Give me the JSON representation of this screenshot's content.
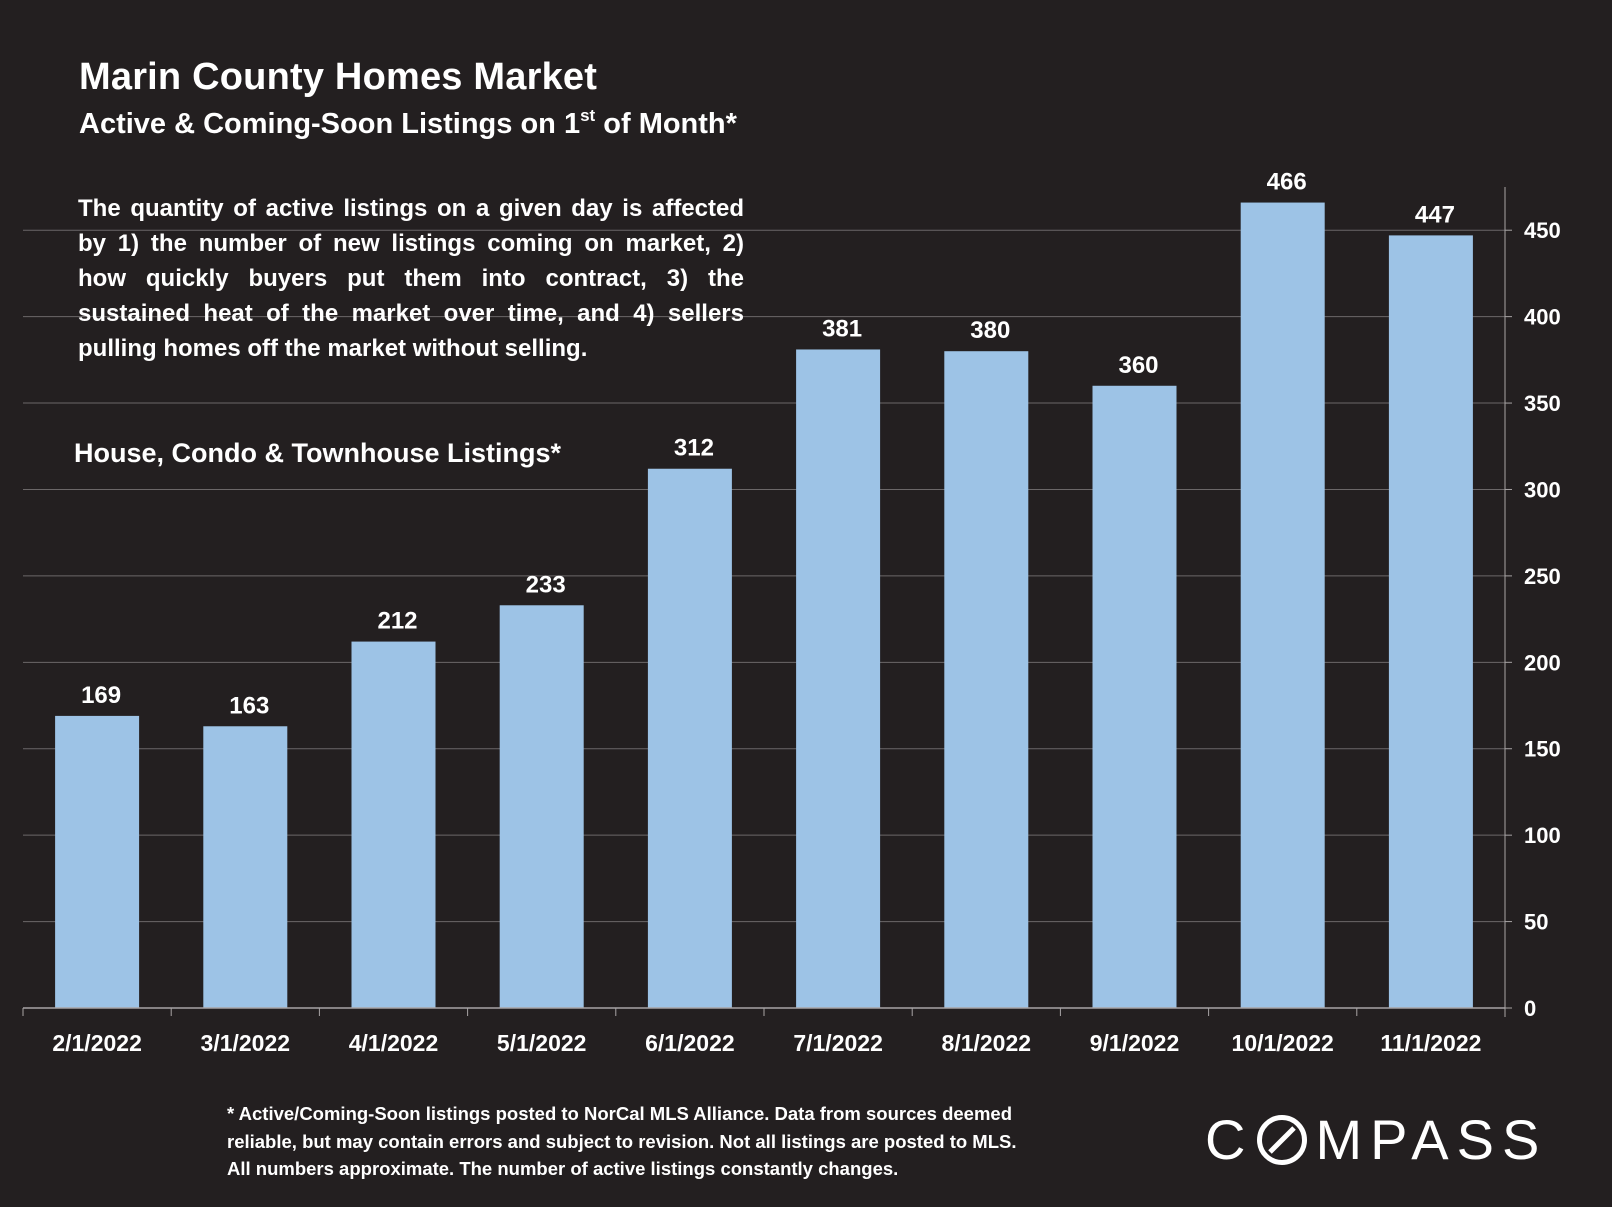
{
  "chart_data": {
    "type": "bar",
    "title": "Marin County Homes Market",
    "subtitle_main": "Active & Coming-Soon Listings on 1",
    "subtitle_sup": "st",
    "subtitle_end": " of Month*",
    "categories": [
      "2/1/2022",
      "3/1/2022",
      "4/1/2022",
      "5/1/2022",
      "6/1/2022",
      "7/1/2022",
      "8/1/2022",
      "9/1/2022",
      "10/1/2022",
      "11/1/2022"
    ],
    "series": [
      {
        "name": "House, Condo & Townhouse Listings*",
        "values": [
          169,
          163,
          212,
          233,
          312,
          381,
          380,
          360,
          466,
          447
        ]
      }
    ],
    "ylim": [
      0,
      475
    ],
    "yticks": [
      0,
      50,
      100,
      150,
      200,
      250,
      300,
      350,
      400,
      450
    ],
    "y_axis_side": "right",
    "grid": true,
    "data_labels": true,
    "bar_color": "#9dc3e6",
    "grid_color": "#6b6768",
    "annotation": "The quantity of active listings on a given day is affected by 1) the number of new listings coming on market, 2) how quickly buyers put them into contract, 3) the sustained heat of the market over time, and 4) sellers pulling homes off the market without selling.",
    "footnote": [
      "* Active/Coming-Soon listings posted to NorCal MLS Alliance.  Data from sources deemed",
      "reliable, but may contain errors and subject to revision.  Not all listings are posted to MLS.",
      "All numbers approximate. The number of active listings constantly changes."
    ]
  },
  "branding": {
    "logo_text": "COMPASS",
    "logo_prefix": "C",
    "logo_suffix": "MPASS"
  }
}
